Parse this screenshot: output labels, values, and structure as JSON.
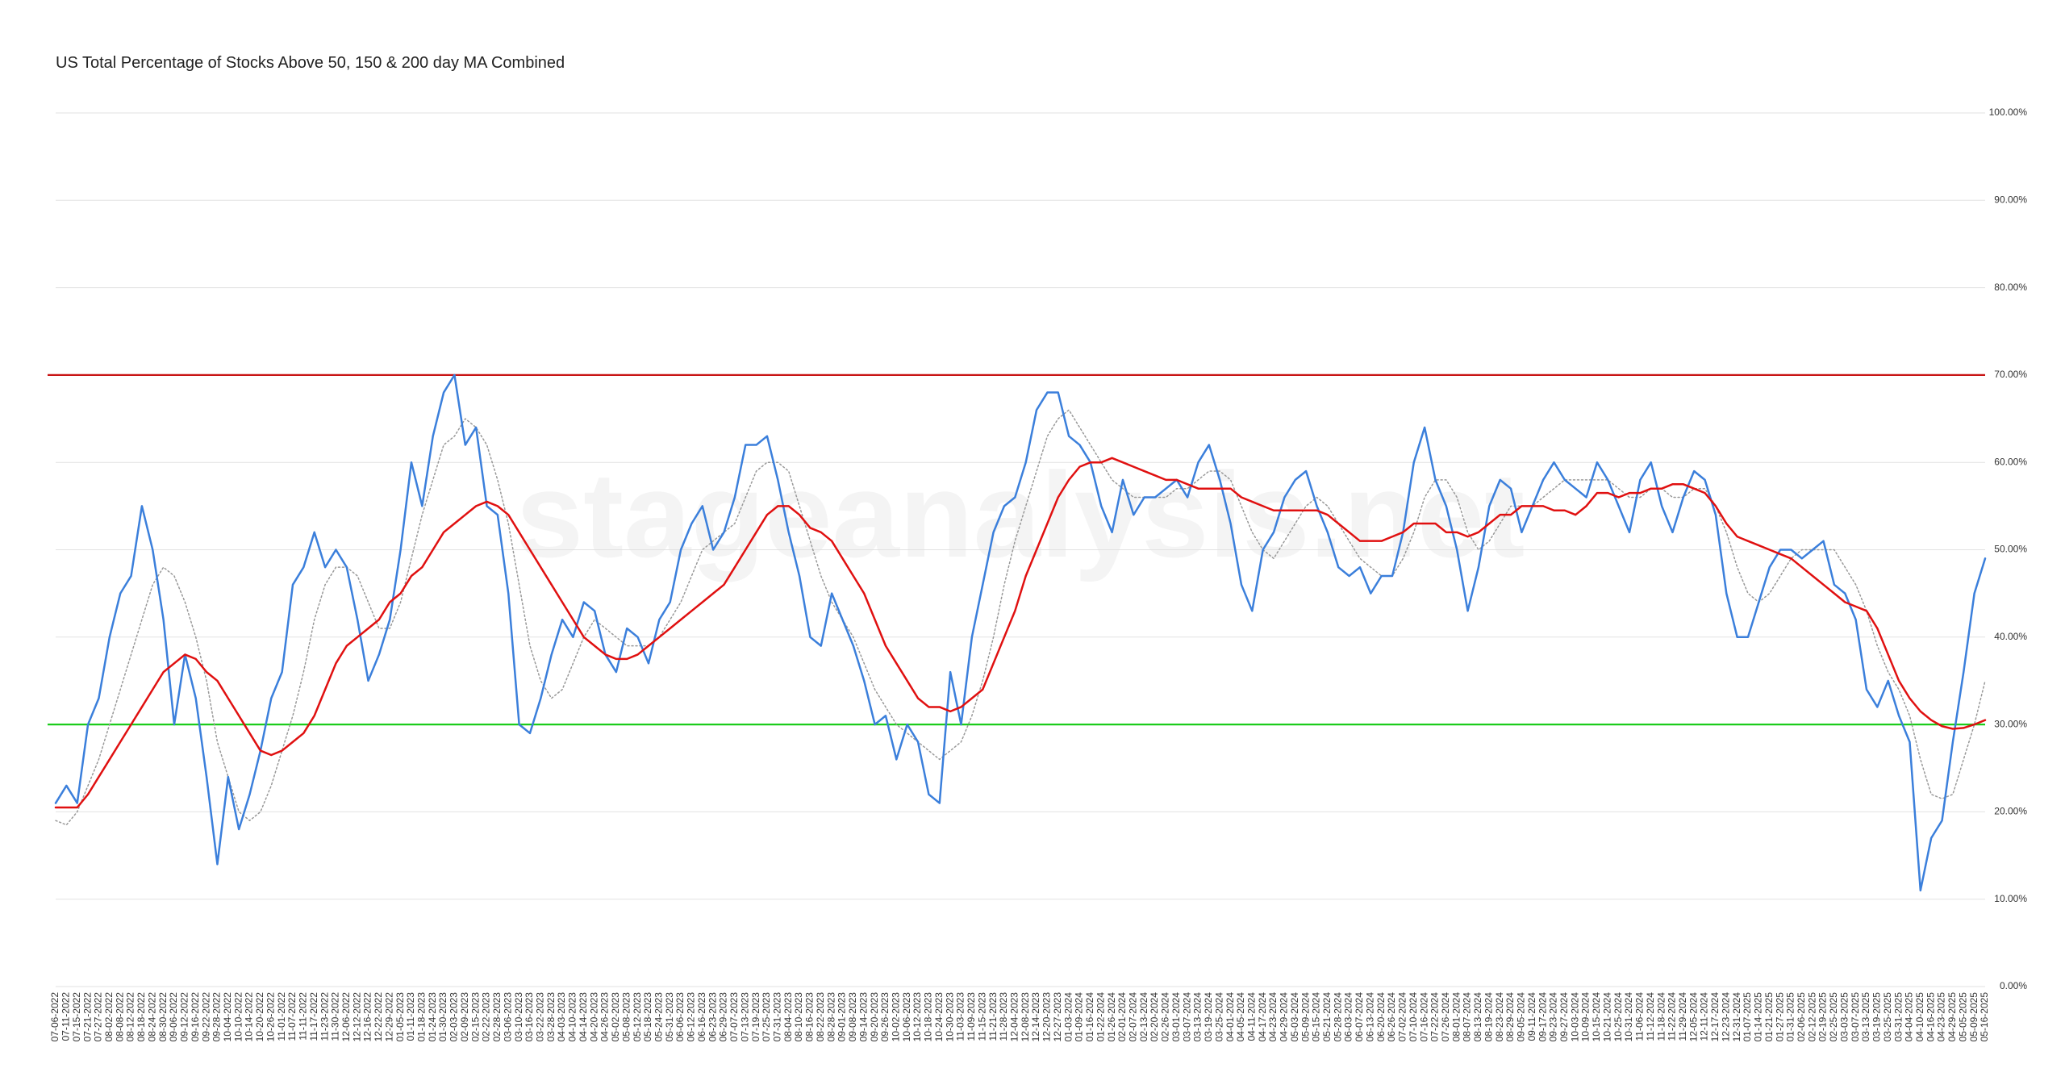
{
  "chart_data": {
    "type": "line",
    "title": "US Total Percentage of Stocks Above 50, 150 & 200 day MA Combined",
    "watermark": "stageanalysis.net",
    "categories": [
      "07-06-2022",
      "07-11-2022",
      "07-15-2022",
      "07-21-2022",
      "07-27-2022",
      "08-02-2022",
      "08-08-2022",
      "08-12-2022",
      "08-18-2022",
      "08-24-2022",
      "08-30-2022",
      "09-06-2022",
      "09-12-2022",
      "09-16-2022",
      "09-22-2022",
      "09-28-2022",
      "10-04-2022",
      "10-10-2022",
      "10-14-2022",
      "10-20-2022",
      "10-26-2022",
      "11-01-2022",
      "11-07-2022",
      "11-11-2022",
      "11-17-2022",
      "11-23-2022",
      "11-30-2022",
      "12-06-2022",
      "12-12-2022",
      "12-16-2022",
      "12-22-2022",
      "12-29-2022",
      "01-05-2023",
      "01-11-2023",
      "01-18-2023",
      "01-24-2023",
      "01-30-2023",
      "02-03-2023",
      "02-09-2023",
      "02-15-2023",
      "02-22-2023",
      "02-28-2023",
      "03-06-2023",
      "03-10-2023",
      "03-16-2023",
      "03-22-2023",
      "03-28-2023",
      "04-03-2023",
      "04-10-2023",
      "04-14-2023",
      "04-20-2023",
      "04-26-2023",
      "05-02-2023",
      "05-08-2023",
      "05-12-2023",
      "05-18-2023",
      "05-24-2023",
      "05-31-2023",
      "06-06-2023",
      "06-12-2023",
      "06-16-2023",
      "06-23-2023",
      "06-29-2023",
      "07-07-2023",
      "07-13-2023",
      "07-19-2023",
      "07-25-2023",
      "07-31-2023",
      "08-04-2023",
      "08-10-2023",
      "08-16-2023",
      "08-22-2023",
      "08-28-2023",
      "09-01-2023",
      "09-08-2023",
      "09-14-2023",
      "09-20-2023",
      "09-26-2023",
      "10-02-2023",
      "10-06-2023",
      "10-12-2023",
      "10-18-2023",
      "10-24-2023",
      "10-30-2023",
      "11-03-2023",
      "11-09-2023",
      "11-15-2023",
      "11-21-2023",
      "11-28-2023",
      "12-04-2023",
      "12-08-2023",
      "12-14-2023",
      "12-20-2023",
      "12-27-2023",
      "01-03-2024",
      "01-09-2024",
      "01-16-2024",
      "01-22-2024",
      "01-26-2024",
      "02-01-2024",
      "02-07-2024",
      "02-13-2024",
      "02-20-2024",
      "02-26-2024",
      "03-01-2024",
      "03-07-2024",
      "03-13-2024",
      "03-19-2024",
      "03-25-2024",
      "04-01-2024",
      "04-05-2024",
      "04-11-2024",
      "04-17-2024",
      "04-23-2024",
      "04-29-2024",
      "05-03-2024",
      "05-09-2024",
      "05-15-2024",
      "05-21-2024",
      "05-28-2024",
      "06-03-2024",
      "06-07-2024",
      "06-13-2024",
      "06-20-2024",
      "06-26-2024",
      "07-02-2024",
      "07-10-2024",
      "07-16-2024",
      "07-22-2024",
      "07-26-2024",
      "08-01-2024",
      "08-07-2024",
      "08-13-2024",
      "08-19-2024",
      "08-23-2024",
      "08-29-2024",
      "09-05-2024",
      "09-11-2024",
      "09-17-2024",
      "09-23-2024",
      "09-27-2024",
      "10-03-2024",
      "10-09-2024",
      "10-15-2024",
      "10-21-2024",
      "10-25-2024",
      "10-31-2024",
      "11-06-2024",
      "11-12-2024",
      "11-18-2024",
      "11-22-2024",
      "11-29-2024",
      "12-05-2024",
      "12-11-2024",
      "12-17-2024",
      "12-23-2024",
      "12-31-2024",
      "01-07-2025",
      "01-14-2025",
      "01-21-2025",
      "01-27-2025",
      "01-31-2025",
      "02-06-2025",
      "02-12-2025",
      "02-19-2025",
      "02-25-2025",
      "03-03-2025",
      "03-07-2025",
      "03-13-2025",
      "03-19-2025",
      "03-25-2025",
      "03-31-2025",
      "04-04-2025",
      "04-10-2025",
      "04-16-2025",
      "04-23-2025",
      "04-29-2025",
      "05-05-2025",
      "05-09-2025",
      "05-16-2025"
    ],
    "series": [
      {
        "color": "#999999",
        "dash": true,
        "width": 1.5,
        "values": [
          19,
          18.5,
          20,
          23,
          26,
          30,
          34,
          38,
          42,
          46,
          48,
          47,
          44,
          40,
          35,
          28,
          24,
          20,
          19,
          20,
          23,
          27,
          31,
          36,
          42,
          46,
          48,
          48,
          47,
          44,
          41,
          41,
          44,
          49,
          54,
          58,
          62,
          63,
          65,
          64,
          62,
          58,
          53,
          46,
          39,
          35,
          33,
          34,
          37,
          40,
          42,
          41,
          40,
          39,
          39,
          39,
          40,
          42,
          44,
          47,
          50,
          51,
          52,
          53,
          56,
          59,
          60,
          60,
          59,
          55,
          51,
          47,
          44,
          42,
          40,
          37,
          34,
          32,
          30,
          29,
          28,
          27,
          26,
          27,
          28,
          31,
          35,
          40,
          46,
          51,
          55,
          59,
          63,
          65,
          66,
          64,
          62,
          60,
          58,
          57,
          56,
          56,
          56,
          56,
          57,
          57,
          58,
          59,
          59,
          58,
          55,
          52,
          50,
          49,
          51,
          53,
          55,
          56,
          55,
          53,
          51,
          49,
          48,
          47,
          47,
          49,
          52,
          56,
          58,
          58,
          56,
          52,
          50,
          51,
          53,
          55,
          55,
          55,
          56,
          57,
          58,
          58,
          58,
          58,
          58,
          57,
          56,
          56,
          57,
          57,
          56,
          56,
          57,
          57,
          55,
          52,
          48,
          45,
          44,
          45,
          47,
          49,
          50,
          50,
          50,
          50,
          48,
          46,
          43,
          39,
          36,
          34,
          31,
          26,
          22,
          21.5,
          22,
          26,
          30,
          35
        ]
      },
      {
        "color": "#3b7fdb",
        "dash": false,
        "width": 2.5,
        "values": [
          21,
          23,
          21,
          30,
          33,
          40,
          45,
          47,
          55,
          50,
          42,
          30,
          38,
          33,
          24,
          14,
          24,
          18,
          22,
          27,
          33,
          36,
          46,
          48,
          52,
          48,
          50,
          48,
          42,
          35,
          38,
          42,
          50,
          60,
          55,
          63,
          68,
          70,
          62,
          64,
          55,
          54,
          45,
          30,
          29,
          33,
          38,
          42,
          40,
          44,
          43,
          38,
          36,
          41,
          40,
          37,
          42,
          44,
          50,
          53,
          55,
          50,
          52,
          56,
          62,
          62,
          63,
          58,
          52,
          47,
          40,
          39,
          45,
          42,
          39,
          35,
          30,
          31,
          26,
          30,
          28,
          22,
          21,
          36,
          30,
          40,
          46,
          52,
          55,
          56,
          60,
          66,
          68,
          68,
          63,
          62,
          60,
          55,
          52,
          58,
          54,
          56,
          56,
          57,
          58,
          56,
          60,
          62,
          58,
          53,
          46,
          43,
          50,
          52,
          56,
          58,
          59,
          55,
          52,
          48,
          47,
          48,
          45,
          47,
          47,
          52,
          60,
          64,
          58,
          55,
          50,
          43,
          48,
          55,
          58,
          57,
          52,
          55,
          58,
          60,
          58,
          57,
          56,
          60,
          58,
          55,
          52,
          58,
          60,
          55,
          52,
          56,
          59,
          58,
          54,
          45,
          40,
          40,
          44,
          48,
          50,
          50,
          49,
          50,
          51,
          46,
          45,
          42,
          34,
          32,
          35,
          31,
          28,
          11,
          17,
          19,
          28,
          36,
          45,
          49
        ]
      },
      {
        "color": "#e01010",
        "dash": false,
        "width": 2.5,
        "values": [
          20.5,
          20.5,
          20.5,
          22,
          24,
          26,
          28,
          30,
          32,
          34,
          36,
          37,
          38,
          37.5,
          36,
          35,
          33,
          31,
          29,
          27,
          26.5,
          27,
          28,
          29,
          31,
          34,
          37,
          39,
          40,
          41,
          42,
          44,
          45,
          47,
          48,
          50,
          52,
          53,
          54,
          55,
          55.5,
          55,
          54,
          52,
          50,
          48,
          46,
          44,
          42,
          40,
          39,
          38,
          37.5,
          37.5,
          38,
          39,
          40,
          41,
          42,
          43,
          44,
          45,
          46,
          48,
          50,
          52,
          54,
          55,
          55,
          54,
          52.5,
          52,
          51,
          49,
          47,
          45,
          42,
          39,
          37,
          35,
          33,
          32,
          32,
          31.5,
          32,
          33,
          34,
          37,
          40,
          43,
          47,
          50,
          53,
          56,
          58,
          59.5,
          60,
          60,
          60.5,
          60,
          59.5,
          59,
          58.5,
          58,
          58,
          57.5,
          57,
          57,
          57,
          57,
          56,
          55.5,
          55,
          54.5,
          54.5,
          54.5,
          54.5,
          54.5,
          54,
          53,
          52,
          51,
          51,
          51,
          51.5,
          52,
          53,
          53,
          53,
          52,
          52,
          51.5,
          52,
          53,
          54,
          54,
          55,
          55,
          55,
          54.5,
          54.5,
          54,
          55,
          56.5,
          56.5,
          56,
          56.5,
          56.5,
          57,
          57,
          57.5,
          57.5,
          57,
          56.5,
          55,
          53,
          51.5,
          51,
          50.5,
          50,
          49.5,
          49,
          48,
          47,
          46,
          45,
          44,
          43.5,
          43,
          41,
          38,
          35,
          33,
          31.5,
          30.5,
          29.8,
          29.5,
          29.6,
          30,
          30.5
        ]
      }
    ],
    "hlines": [
      {
        "value": 70,
        "color": "#c81414"
      },
      {
        "value": 30,
        "color": "#1ccc1c"
      }
    ],
    "ylim": [
      0,
      100
    ],
    "yticks": [
      {
        "value": 0,
        "label": "0.00%"
      },
      {
        "value": 10,
        "label": "10.00%"
      },
      {
        "value": 20,
        "label": "20.00%"
      },
      {
        "value": 30,
        "label": "30.00%"
      },
      {
        "value": 40,
        "label": "40.00%"
      },
      {
        "value": 50,
        "label": "50.00%"
      },
      {
        "value": 60,
        "label": "60.00%"
      },
      {
        "value": 70,
        "label": "70.00%"
      },
      {
        "value": 80,
        "label": "80.00%"
      },
      {
        "value": 90,
        "label": "90.00%"
      },
      {
        "value": 100,
        "label": "100.00%"
      }
    ],
    "grid": true
  }
}
